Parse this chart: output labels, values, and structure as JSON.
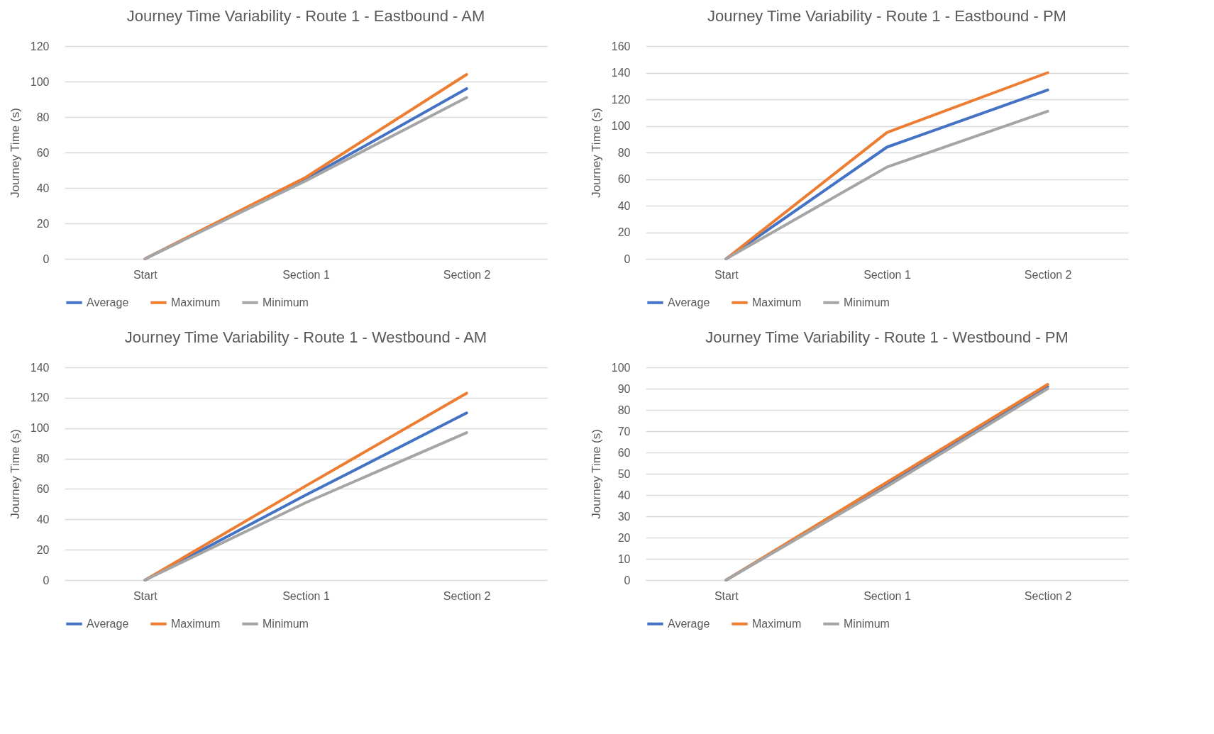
{
  "chart_data": [
    {
      "type": "line",
      "title": "Journey Time Variability - Route 1 - Eastbound - AM",
      "ylabel": "Journey Time (s)",
      "categories": [
        "Start",
        "Section 1",
        "Section 2"
      ],
      "ylim": [
        0,
        120
      ],
      "yticks": [
        0,
        20,
        40,
        60,
        80,
        100,
        120
      ],
      "grid": "y",
      "legend": "bottom",
      "line_style": "solid",
      "series": [
        {
          "name": "Average",
          "color": "#4472c4",
          "values": [
            0,
            45,
            96
          ]
        },
        {
          "name": "Maximum",
          "color": "#ed7d31",
          "values": [
            0,
            46,
            104
          ]
        },
        {
          "name": "Minimum",
          "color": "#a5a5a5",
          "values": [
            0,
            44,
            91
          ]
        }
      ]
    },
    {
      "type": "line",
      "title": "Journey Time Variability - Route 1 - Eastbound - PM",
      "ylabel": "Journey Time (s)",
      "categories": [
        "Start",
        "Section 1",
        "Section 2"
      ],
      "ylim": [
        0,
        160
      ],
      "yticks": [
        0,
        20,
        40,
        60,
        80,
        100,
        120,
        140,
        160
      ],
      "grid": "y",
      "legend": "bottom",
      "line_style": "solid",
      "series": [
        {
          "name": "Average",
          "color": "#4472c4",
          "values": [
            0,
            84,
            127
          ]
        },
        {
          "name": "Maximum",
          "color": "#ed7d31",
          "values": [
            0,
            95,
            140
          ]
        },
        {
          "name": "Minimum",
          "color": "#a5a5a5",
          "values": [
            0,
            69,
            111
          ]
        }
      ]
    },
    {
      "type": "line",
      "title": "Journey Time Variability - Route 1 - Westbound - AM",
      "ylabel": "Journey Time (s)",
      "categories": [
        "Start",
        "Section 1",
        "Section 2"
      ],
      "ylim": [
        0,
        140
      ],
      "yticks": [
        0,
        20,
        40,
        60,
        80,
        100,
        120,
        140
      ],
      "grid": "y",
      "legend": "bottom",
      "line_style": "solid",
      "series": [
        {
          "name": "Average",
          "color": "#4472c4",
          "values": [
            0,
            56,
            110
          ]
        },
        {
          "name": "Maximum",
          "color": "#ed7d31",
          "values": [
            0,
            62,
            123
          ]
        },
        {
          "name": "Minimum",
          "color": "#a5a5a5",
          "values": [
            0,
            51,
            97
          ]
        }
      ]
    },
    {
      "type": "line",
      "title": "Journey Time Variability - Route 1 - Westbound - PM",
      "ylabel": "Journey Time (s)",
      "categories": [
        "Start",
        "Section 1",
        "Section 2"
      ],
      "ylim": [
        0,
        100
      ],
      "yticks": [
        0,
        10,
        20,
        30,
        40,
        50,
        60,
        70,
        80,
        90,
        100
      ],
      "grid": "y",
      "legend": "bottom",
      "line_style": "solid",
      "series": [
        {
          "name": "Average",
          "color": "#4472c4",
          "values": [
            0,
            45,
            91
          ]
        },
        {
          "name": "Maximum",
          "color": "#ed7d31",
          "values": [
            0,
            46,
            92
          ]
        },
        {
          "name": "Minimum",
          "color": "#a5a5a5",
          "values": [
            0,
            44,
            90
          ]
        }
      ]
    }
  ]
}
